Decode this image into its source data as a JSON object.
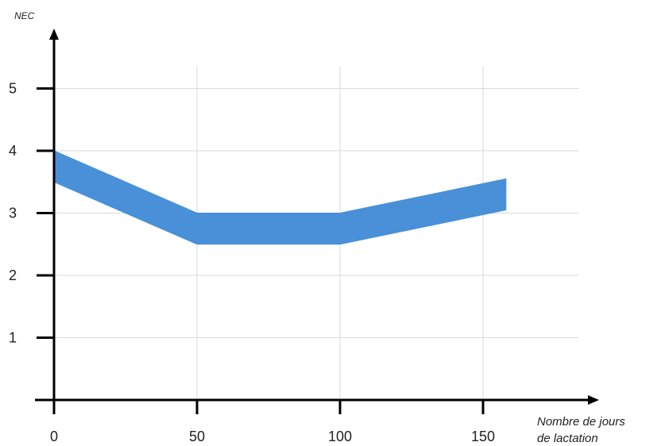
{
  "chart_data": {
    "type": "area",
    "ylabel": "NEC",
    "xlabel_line1": "Nombre de jours",
    "xlabel_line2": "de lactation",
    "x_ticks": [
      "0",
      "50",
      "100",
      "150"
    ],
    "y_ticks": [
      "1",
      "2",
      "3",
      "4",
      "5"
    ],
    "xlim": [
      0,
      160
    ],
    "ylim": [
      0,
      5
    ],
    "grid": true,
    "band": {
      "x": [
        0,
        50,
        100,
        158
      ],
      "upper": [
        4.0,
        3.0,
        3.0,
        3.55
      ],
      "lower": [
        3.5,
        2.5,
        2.5,
        3.05
      ]
    },
    "band_color": "#4a90d9",
    "grid_color": "#d9d9d9",
    "axis_color": "#000000"
  }
}
